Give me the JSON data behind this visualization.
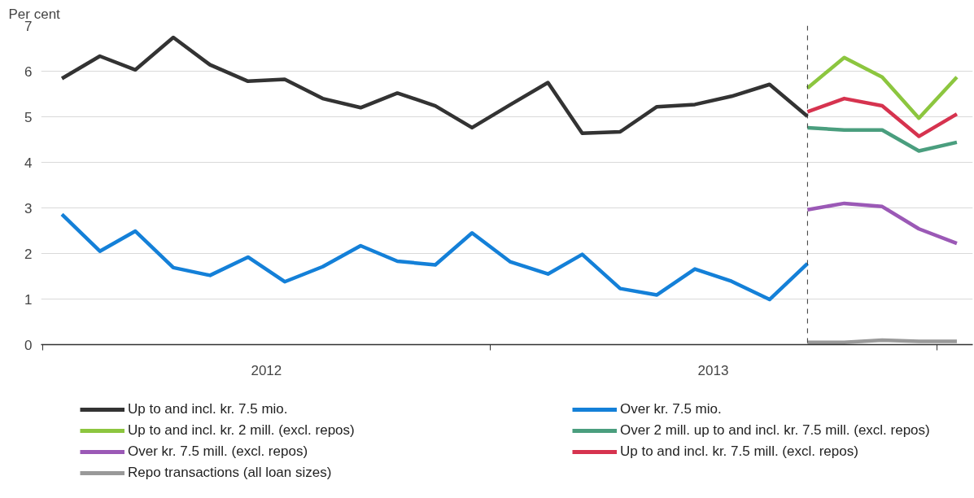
{
  "chart_data": {
    "type": "line",
    "ylabel": "Per cent",
    "x": [
      "2012-01",
      "2012-02",
      "2012-03",
      "2012-04",
      "2012-05",
      "2012-06",
      "2012-07",
      "2012-08",
      "2012-09",
      "2012-10",
      "2012-11",
      "2012-12",
      "2013-01",
      "2013-02",
      "2013-03",
      "2013-04",
      "2013-05",
      "2013-06",
      "2013-07",
      "2013-08",
      "2013-09"
    ],
    "series": [
      {
        "name": "Up to and incl. kr. 7.5 mio.",
        "color": "#333333",
        "values": [
          5.84,
          6.33,
          6.03,
          6.74,
          6.14,
          5.78,
          5.82,
          5.4,
          5.2,
          5.52,
          5.24,
          4.76,
          5.26,
          5.75,
          4.64,
          4.67,
          5.22,
          5.27,
          5.45,
          5.71,
          5.01
        ]
      },
      {
        "name": "Over kr. 7.5 mio.",
        "color": "#1480d8",
        "values": [
          2.86,
          2.05,
          2.49,
          1.69,
          1.52,
          1.92,
          1.38,
          1.71,
          2.17,
          1.83,
          1.75,
          2.45,
          1.82,
          1.55,
          1.98,
          1.23,
          1.09,
          1.66,
          1.39,
          0.99,
          1.78
        ]
      },
      {
        "name": "Up to and incl. kr. 2 mill. (excl. repos)",
        "color": "#8cc63f",
        "x": [
          "2013-09",
          "2013-10",
          "2013-11",
          "2013-12",
          "2014-01"
        ],
        "values": [
          5.63,
          6.3,
          5.87,
          4.97,
          5.87
        ]
      },
      {
        "name": "Over 2 mill. up to and incl. kr. 7.5 mill. (excl. repos)",
        "color": "#4a9e7e",
        "x": [
          "2013-09",
          "2013-10",
          "2013-11",
          "2013-12",
          "2014-01"
        ],
        "values": [
          4.76,
          4.71,
          4.71,
          4.25,
          4.44
        ]
      },
      {
        "name": "Over kr. 7.5 mill. (excl. repos)",
        "color": "#9b59b6",
        "x": [
          "2013-09",
          "2013-10",
          "2013-11",
          "2013-12",
          "2014-01"
        ],
        "values": [
          2.96,
          3.1,
          3.03,
          2.54,
          2.22
        ]
      },
      {
        "name": "Up to and incl. kr. 7.5 mill. (excl. repos)",
        "color": "#d6334f",
        "x": [
          "2013-09",
          "2013-10",
          "2013-11",
          "2013-12",
          "2014-01"
        ],
        "values": [
          5.11,
          5.4,
          5.24,
          4.57,
          5.06
        ]
      },
      {
        "name": "Repo transactions (all loan sizes)",
        "color": "#999999",
        "x": [
          "2013-09",
          "2013-10",
          "2013-11",
          "2013-12",
          "2014-01"
        ],
        "values": [
          0.05,
          0.05,
          0.1,
          0.07,
          0.07
        ]
      }
    ],
    "xlim": [
      "2011-12-15",
      "2014-01-14"
    ],
    "xticks": [
      {
        "value": "2011-12-16",
        "label": null
      },
      {
        "value": "2012-06-16",
        "label": "2012"
      },
      {
        "value": "2012-12-16",
        "label": null
      },
      {
        "value": "2013-06-16",
        "label": "2013"
      },
      {
        "value": "2013-12-16",
        "label": null
      }
    ],
    "ylim": [
      0,
      7
    ],
    "yticks": [
      0,
      1,
      2,
      3,
      4,
      5,
      6,
      7
    ],
    "ref_lines": [
      {
        "axis": "x",
        "value": "2013-09",
        "color": "#333333",
        "line_style": "dashed"
      }
    ],
    "grid": "y",
    "legend": "bottom",
    "line_style": "solid",
    "marker": "none"
  }
}
